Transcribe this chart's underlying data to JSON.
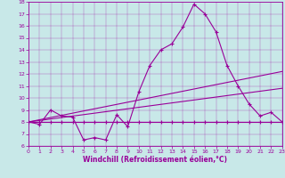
{
  "xlabel": "Windchill (Refroidissement éolien,°C)",
  "ylabel": "",
  "xlim": [
    0,
    23
  ],
  "ylim": [
    6,
    18
  ],
  "xticks": [
    0,
    1,
    2,
    3,
    4,
    5,
    6,
    7,
    8,
    9,
    10,
    11,
    12,
    13,
    14,
    15,
    16,
    17,
    18,
    19,
    20,
    21,
    22,
    23
  ],
  "yticks": [
    6,
    7,
    8,
    9,
    10,
    11,
    12,
    13,
    14,
    15,
    16,
    17,
    18
  ],
  "color": "#990099",
  "background": "#c8e8e8",
  "line1_x": [
    0,
    1,
    2,
    3,
    4,
    5,
    6,
    7,
    8,
    9,
    10,
    11,
    12,
    13,
    14,
    15,
    16,
    17,
    18,
    19,
    20,
    21,
    22,
    23
  ],
  "line1_y": [
    8.0,
    7.8,
    9.0,
    8.5,
    8.4,
    6.5,
    6.7,
    6.5,
    8.6,
    7.6,
    10.5,
    12.7,
    14.0,
    14.5,
    15.9,
    17.8,
    17.0,
    15.5,
    12.7,
    11.0,
    9.5,
    8.5,
    8.8,
    8.0
  ],
  "line2_x": [
    0,
    1,
    2,
    3,
    4,
    5,
    6,
    7,
    8,
    9,
    10,
    11,
    12,
    13,
    14,
    15,
    16,
    17,
    18,
    19,
    20,
    21,
    22,
    23
  ],
  "line2_y": [
    8.0,
    8.0,
    8.0,
    8.0,
    8.0,
    8.0,
    8.0,
    8.0,
    8.0,
    8.0,
    8.0,
    8.0,
    8.0,
    8.0,
    8.0,
    8.0,
    8.0,
    8.0,
    8.0,
    8.0,
    8.0,
    8.0,
    8.0,
    8.0
  ],
  "line3_x": [
    0,
    23
  ],
  "line3_y": [
    8.0,
    12.2
  ],
  "line4_x": [
    0,
    23
  ],
  "line4_y": [
    8.0,
    10.8
  ]
}
